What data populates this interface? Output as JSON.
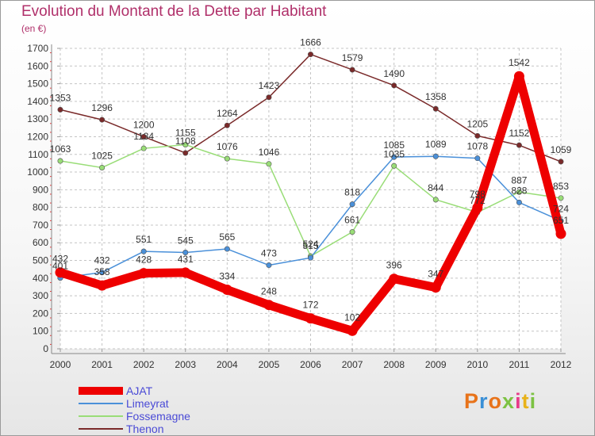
{
  "title": "Evolution du Montant de la Dette par Habitant",
  "unit": "(en €)",
  "brand": "Proxiti",
  "chart_data": {
    "type": "line",
    "title": "Evolution du Montant de la Dette par Habitant",
    "subtitle": "(en €)",
    "xlabel": "",
    "ylabel": "",
    "x": [
      2000,
      2001,
      2002,
      2003,
      2004,
      2005,
      2006,
      2007,
      2008,
      2009,
      2010,
      2011,
      2012
    ],
    "ylim": [
      0,
      1700
    ],
    "yticks": [
      0,
      100,
      200,
      300,
      400,
      500,
      600,
      700,
      800,
      900,
      1000,
      1100,
      1200,
      1300,
      1400,
      1500,
      1600,
      1700
    ],
    "grid": "horizontal dashed",
    "legend": "bottom-left",
    "series": [
      {
        "name": "Thenon",
        "color": "#7a2a2a",
        "values": [
          1353,
          1296,
          1200,
          1108,
          1264,
          1423,
          1666,
          1579,
          1490,
          1358,
          1205,
          1152,
          1059
        ]
      },
      {
        "name": "Fossemagne",
        "color": "#99dd77",
        "values": [
          1063,
          1025,
          1134,
          1155,
          1076,
          1046,
          524,
          661,
          1035,
          844,
          772,
          887,
          853
        ]
      },
      {
        "name": "Limeyrat",
        "color": "#4a90d9",
        "values": [
          401,
          432,
          551,
          545,
          565,
          473,
          515,
          818,
          1085,
          1089,
          1078,
          828,
          724
        ]
      },
      {
        "name": "AJAT",
        "color": "#ee0000",
        "values": [
          432,
          358,
          428,
          431,
          334,
          248,
          172,
          102,
          396,
          347,
          798,
          1542,
          651
        ]
      }
    ]
  }
}
